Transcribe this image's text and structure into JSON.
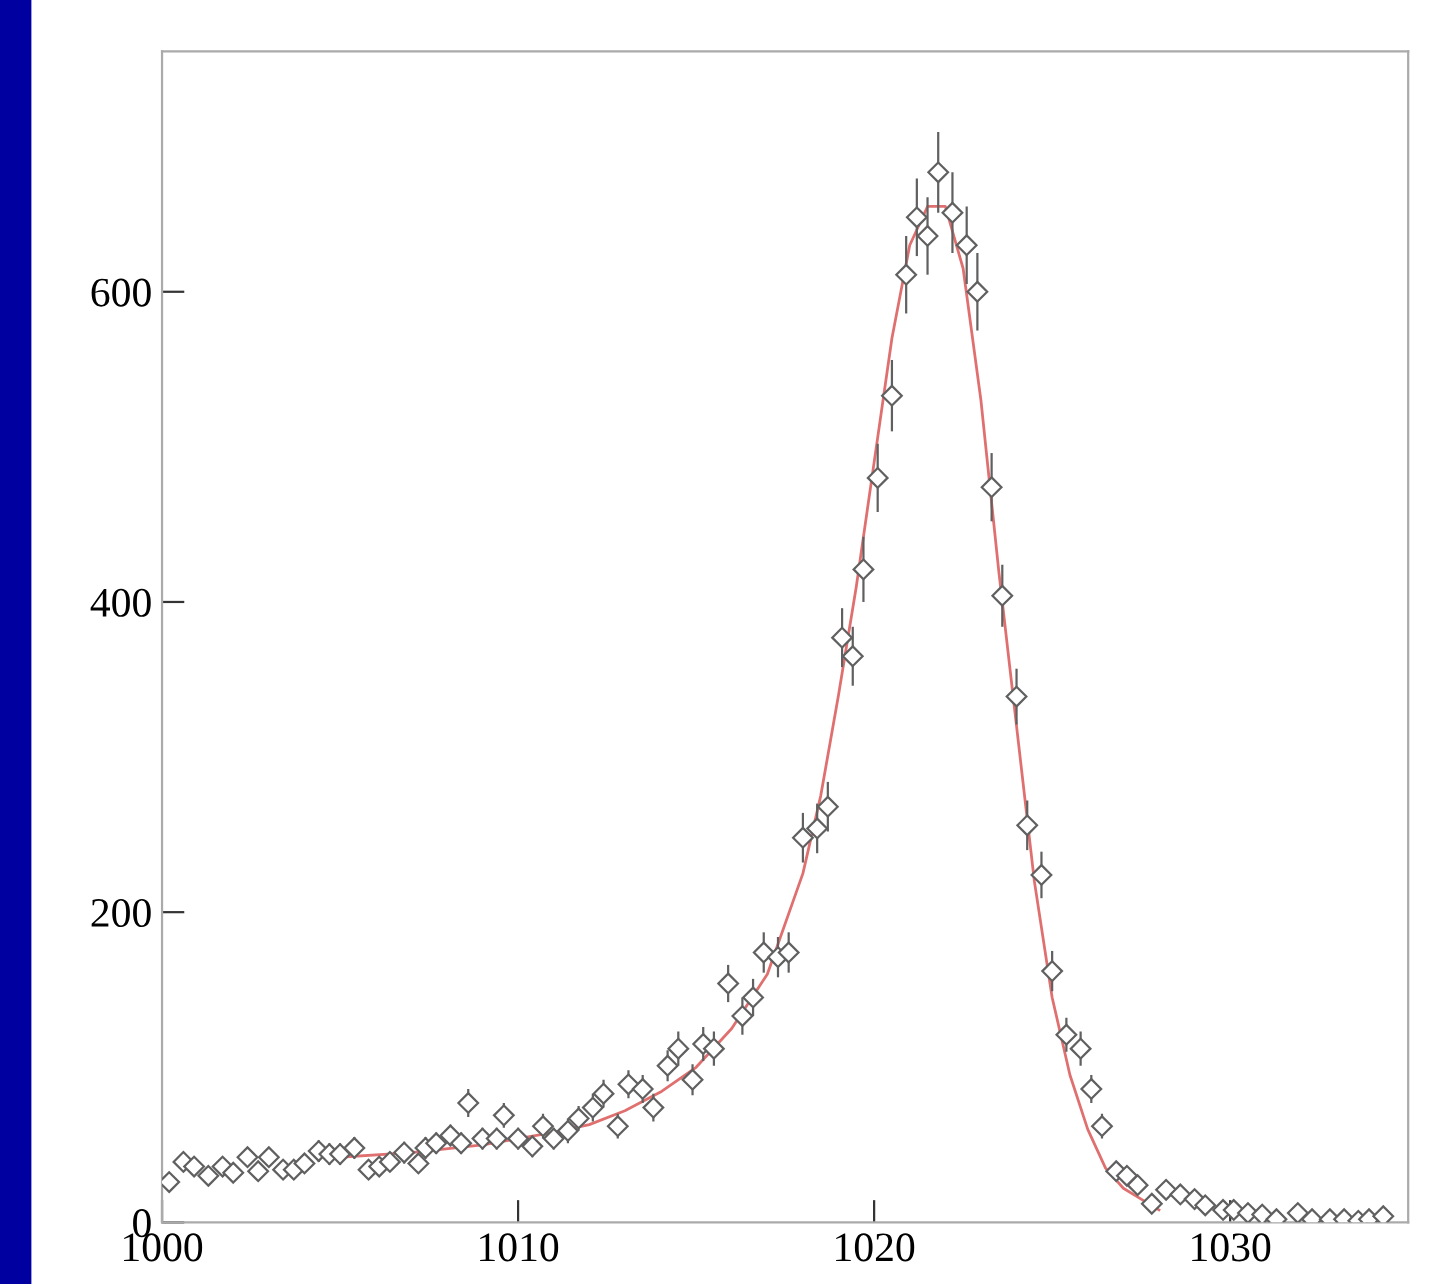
{
  "chart_data": {
    "type": "scatter",
    "xlim": [
      1000,
      1035
    ],
    "ylim": [
      0,
      755
    ],
    "xticks": [
      1000,
      1010,
      1020,
      1030
    ],
    "yticks": [
      0,
      200,
      400,
      600
    ],
    "grid": false,
    "legend": false,
    "series": [
      {
        "color": "#606060",
        "marker": "diamond",
        "x": [
          1000.2,
          1000.6,
          1000.9,
          1001.3,
          1001.7,
          1002.0,
          1002.4,
          1002.7,
          1003.0,
          1003.4,
          1003.7,
          1004.0,
          1004.4,
          1004.7,
          1005.0,
          1005.4,
          1005.8,
          1006.1,
          1006.4,
          1006.8,
          1007.2,
          1007.4,
          1007.7,
          1008.1,
          1008.4,
          1008.6,
          1009.0,
          1009.4,
          1009.6,
          1010.0,
          1010.4,
          1010.7,
          1011.0,
          1011.4,
          1011.7,
          1012.1,
          1012.4,
          1012.8,
          1013.1,
          1013.5,
          1013.8,
          1014.2,
          1014.5,
          1014.9,
          1015.2,
          1015.5,
          1015.9,
          1016.3,
          1016.6,
          1016.9,
          1017.3,
          1017.6,
          1018.0,
          1018.4,
          1018.7,
          1019.1,
          1019.4,
          1019.7,
          1020.1,
          1020.5,
          1020.9,
          1021.2,
          1021.5,
          1021.8,
          1022.2,
          1022.6,
          1022.9,
          1023.3,
          1023.6,
          1024.0,
          1024.3,
          1024.7,
          1025.0,
          1025.4,
          1025.8,
          1026.1,
          1026.4,
          1026.8,
          1027.1,
          1027.4,
          1027.8,
          1028.2,
          1028.6,
          1029.0,
          1029.3,
          1029.8,
          1030.1,
          1030.5,
          1030.9,
          1031.3,
          1031.9,
          1032.3,
          1032.8,
          1033.2,
          1033.6,
          1033.9,
          1034.3
        ],
        "values": [
          26,
          39,
          36,
          30,
          36,
          32,
          42,
          33,
          42,
          34,
          34,
          38,
          46,
          44,
          44,
          48,
          34,
          36,
          39,
          45,
          38,
          48,
          51,
          56,
          51,
          77,
          54,
          54,
          69,
          54,
          49,
          62,
          54,
          59,
          67,
          74,
          83,
          62,
          89,
          86,
          74,
          101,
          112,
          92,
          115,
          112,
          154,
          133,
          145,
          174,
          171,
          174,
          248,
          254,
          268,
          377,
          365,
          421,
          480,
          533,
          611,
          648,
          636,
          677,
          651,
          630,
          600,
          474,
          404,
          339,
          256,
          224,
          162,
          121,
          112,
          86,
          62,
          33,
          30,
          24,
          12,
          21,
          18,
          15,
          11,
          8,
          8,
          6,
          5,
          2,
          6,
          2,
          2,
          2,
          1,
          2,
          4
        ],
        "errors": [
          5,
          6,
          6,
          5,
          6,
          6,
          6,
          6,
          6,
          6,
          6,
          6,
          7,
          7,
          7,
          7,
          6,
          6,
          6,
          7,
          6,
          7,
          7,
          7,
          7,
          9,
          7,
          7,
          8,
          7,
          7,
          8,
          7,
          8,
          8,
          9,
          9,
          8,
          9,
          9,
          9,
          10,
          11,
          10,
          11,
          11,
          12,
          12,
          12,
          13,
          13,
          13,
          16,
          16,
          16,
          19,
          19,
          21,
          22,
          23,
          25,
          25,
          25,
          26,
          26,
          25,
          25,
          22,
          20,
          18,
          16,
          15,
          13,
          11,
          11,
          9,
          8,
          6,
          5,
          5,
          4,
          5,
          4,
          4,
          3,
          3,
          3,
          3,
          2,
          2,
          3,
          2,
          2,
          2,
          1,
          2,
          2
        ]
      },
      {
        "type": "line",
        "color": "#e07070",
        "marker": "none",
        "x": [
          1005,
          1007,
          1009,
          1011,
          1012,
          1013,
          1014,
          1015,
          1016,
          1017,
          1018,
          1018.5,
          1019,
          1019.5,
          1020,
          1020.5,
          1021,
          1021.5,
          1022,
          1022.5,
          1023,
          1023.5,
          1024,
          1024.5,
          1025,
          1025.5,
          1026,
          1026.5,
          1027,
          1027.5,
          1028
        ],
        "values": [
          42,
          45,
          50,
          58,
          63,
          72,
          84,
          100,
          125,
          160,
          225,
          275,
          340,
          410,
          490,
          570,
          630,
          655,
          655,
          615,
          530,
          420,
          320,
          220,
          145,
          95,
          60,
          35,
          22,
          15,
          8
        ]
      }
    ]
  }
}
